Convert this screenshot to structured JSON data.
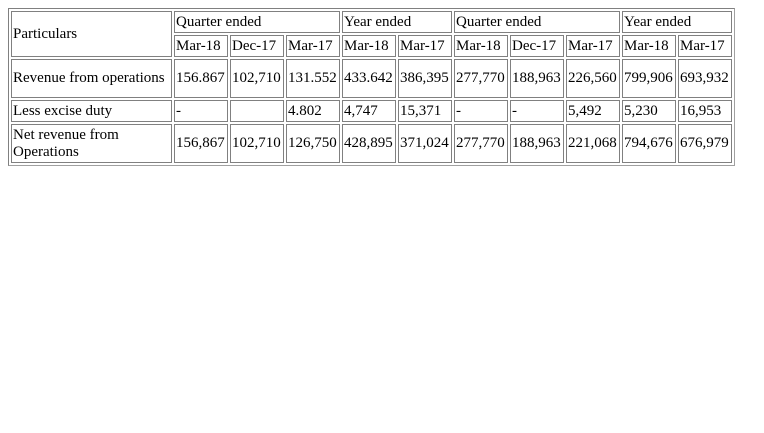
{
  "table": {
    "particulars_label": "Particulars",
    "group_headers": [
      {
        "label": "Quarter ended",
        "span": 3
      },
      {
        "label": "Year ended",
        "span": 2
      },
      {
        "label": "Quarter ended",
        "span": 3
      },
      {
        "label": "Year ended",
        "span": 2
      }
    ],
    "period_headers": [
      "Mar-18",
      "Dec-17",
      "Mar-17",
      "Mar-18",
      "Mar-17",
      "Mar-18",
      "Dec-17",
      "Mar-17",
      "Mar-18",
      "Mar-17"
    ],
    "rows": [
      {
        "label": "Revenue from operations",
        "values": [
          "156.867",
          "102,710",
          "131.552",
          "433.642",
          "386,395",
          "277,770",
          "188,963",
          "226,560",
          "799,906",
          "693,932"
        ]
      },
      {
        "label": "Less excise duty",
        "values": [
          "-",
          "",
          "4.802",
          "4,747",
          "15,371",
          "-",
          "-",
          "5,492",
          "5,230",
          "16,953"
        ]
      },
      {
        "label": "Net revenue from Operations",
        "values": [
          "156,867",
          "102,710",
          "126,750",
          "428,895",
          "371,024",
          "277,770",
          "188,963",
          "221,068",
          "794,676",
          "676,979"
        ]
      }
    ]
  }
}
